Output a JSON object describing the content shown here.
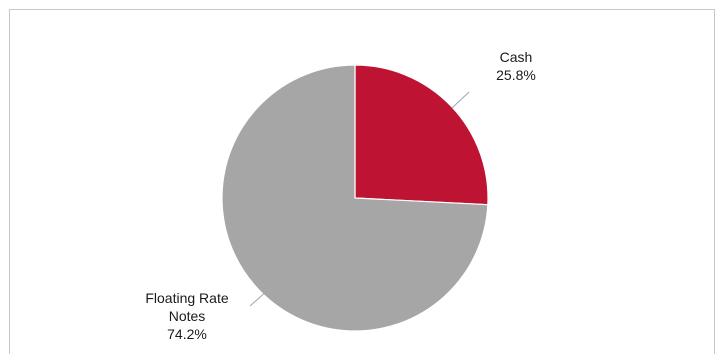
{
  "chart_data": {
    "type": "pie",
    "title": "",
    "series": [
      {
        "values": [
          25.8,
          74.2
        ],
        "categories": [
          "Cash",
          "Floating Rate Notes"
        ]
      }
    ],
    "slices": [
      {
        "label": "Cash",
        "display_label_lines": [
          "Cash"
        ],
        "value": 25.8,
        "value_label": "25.8%",
        "color": "#be1333"
      },
      {
        "label": "Floating Rate Notes",
        "display_label_lines": [
          "Floating Rate",
          "Notes"
        ],
        "value": 74.2,
        "value_label": "74.2%",
        "color": "#a6a6a6"
      }
    ],
    "start_angle": "12 o'clock",
    "direction": "clockwise",
    "legend": "none",
    "data_labels": "outside with leader lines"
  }
}
